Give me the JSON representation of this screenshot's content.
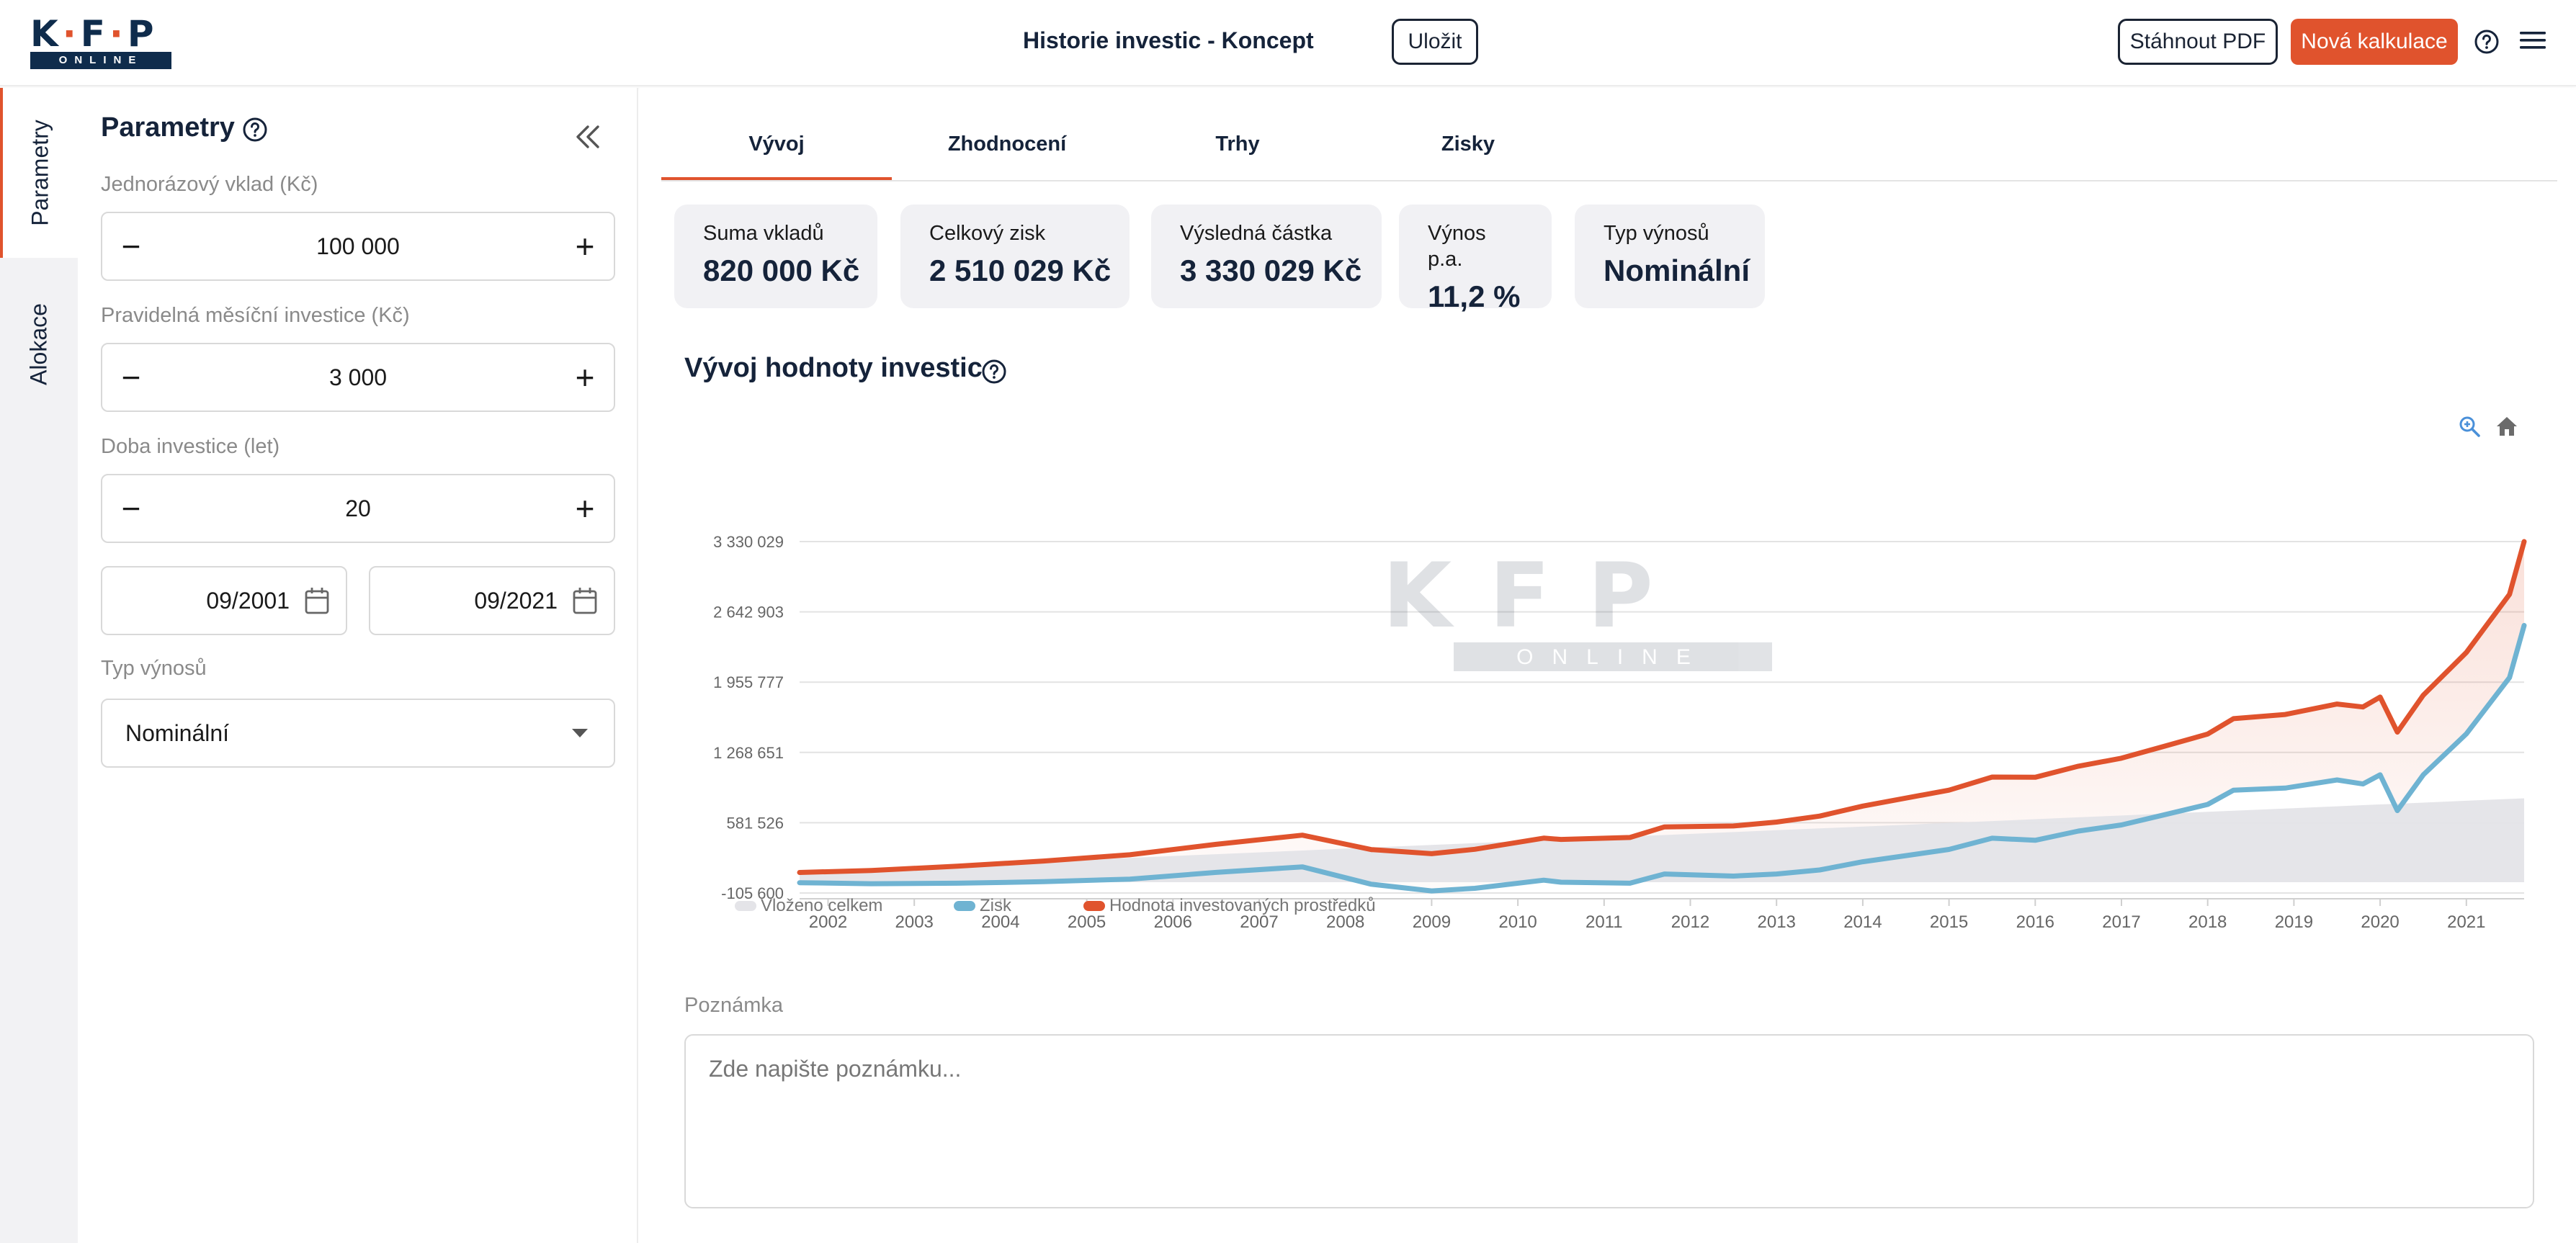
{
  "header": {
    "logo_letters": [
      "K",
      "F",
      "P"
    ],
    "logo_sub": "ONLINE",
    "title": "Historie investic - Koncept",
    "save_label": "Uložit",
    "pdf_label": "Stáhnout PDF",
    "new_label": "Nová kalkulace"
  },
  "side_tabs": [
    "Parametry",
    "Alokace"
  ],
  "params": {
    "title": "Parametry",
    "lump_sum": {
      "label": "Jednorázový vklad (Kč)",
      "value": "100 000"
    },
    "monthly": {
      "label": "Pravidelná měsíční investice (Kč)",
      "value": "3 000"
    },
    "years": {
      "label": "Doba investice (let)",
      "value": "20"
    },
    "date_from": "09/2001",
    "date_to": "09/2021",
    "yield_type": {
      "label": "Typ výnosů",
      "value": "Nominální"
    }
  },
  "tabs": [
    "Vývoj",
    "Zhodnocení",
    "Trhy",
    "Zisky"
  ],
  "summary": [
    {
      "label": "Suma vkladů",
      "value": "820 000 Kč"
    },
    {
      "label": "Celkový zisk",
      "value": "2 510 029 Kč"
    },
    {
      "label": "Výsledná částka",
      "value": "3 330 029 Kč"
    },
    {
      "label": "Výnos p.a.",
      "value": "11,2 %"
    },
    {
      "label": "Typ výnosů",
      "value": "Nominální"
    }
  ],
  "section_title": "Vývoj hodnoty investic",
  "colors": {
    "accent": "#e0532d",
    "navy": "#15233a",
    "profit": "#6fb3d2",
    "deposited": "#e4e4e8"
  },
  "chart_data": {
    "type": "line",
    "xlabel": "",
    "ylabel": "",
    "y_ticks": [
      "3 330 029",
      "2 642 903",
      "1 955 777",
      "1 268 651",
      "581 526",
      "-105 600"
    ],
    "ylim": [
      -105600,
      3330029
    ],
    "x_ticks": [
      "2002",
      "2003",
      "2004",
      "2005",
      "2006",
      "2007",
      "2008",
      "2009",
      "2010",
      "2011",
      "2012",
      "2013",
      "2014",
      "2015",
      "2016",
      "2017",
      "2018",
      "2019",
      "2020",
      "2021"
    ],
    "x": [
      2001.67,
      2002.5,
      2003.5,
      2004.5,
      2005.5,
      2006.5,
      2007.5,
      2008.3,
      2009.0,
      2009.5,
      2010.3,
      2010.5,
      2011.3,
      2011.7,
      2012.5,
      2013.0,
      2013.5,
      2014.0,
      2014.5,
      2015.0,
      2015.5,
      2016.0,
      2016.5,
      2017.0,
      2017.5,
      2018.0,
      2018.3,
      2018.9,
      2019.5,
      2019.8,
      2020.0,
      2020.2,
      2020.5,
      2021.0,
      2021.5,
      2021.67
    ],
    "legend": [
      "Vloženo celkem",
      "Zisk",
      "Hodnota investovaných prostředků"
    ],
    "series": [
      {
        "name": "Vloženo celkem",
        "values": [
          100000,
          130000,
          166000,
          202000,
          238000,
          274000,
          310000,
          339000,
          364000,
          382000,
          411000,
          418000,
          447000,
          461000,
          490000,
          508000,
          526000,
          544000,
          562000,
          580000,
          598000,
          616000,
          634000,
          652000,
          670000,
          688000,
          699000,
          720000,
          742000,
          753000,
          760000,
          767000,
          778000,
          796000,
          814000,
          820000
        ]
      },
      {
        "name": "Zisk",
        "values": [
          -5000,
          -15000,
          -10000,
          5000,
          30000,
          96000,
          150000,
          -20000,
          -85000,
          -60000,
          20000,
          0,
          -10000,
          80000,
          60000,
          80000,
          120000,
          200000,
          260000,
          320000,
          430000,
          410000,
          500000,
          560000,
          660000,
          760000,
          900000,
          920000,
          1000000,
          960000,
          1050000,
          700000,
          1050000,
          1450000,
          2000000,
          2510029
        ]
      },
      {
        "name": "Hodnota investovaných prostředků",
        "values": [
          95000,
          115000,
          156000,
          207000,
          268000,
          370000,
          460000,
          319000,
          279000,
          322000,
          431000,
          418000,
          437000,
          541000,
          550000,
          588000,
          646000,
          744000,
          822000,
          900000,
          1028000,
          1026000,
          1134000,
          1212000,
          1330000,
          1448000,
          1599000,
          1640000,
          1742000,
          1713000,
          1810000,
          1467000,
          1828000,
          2246000,
          2814000,
          3330029
        ]
      }
    ]
  },
  "note": {
    "label": "Poznámka",
    "placeholder": "Zde napište poznámku..."
  }
}
